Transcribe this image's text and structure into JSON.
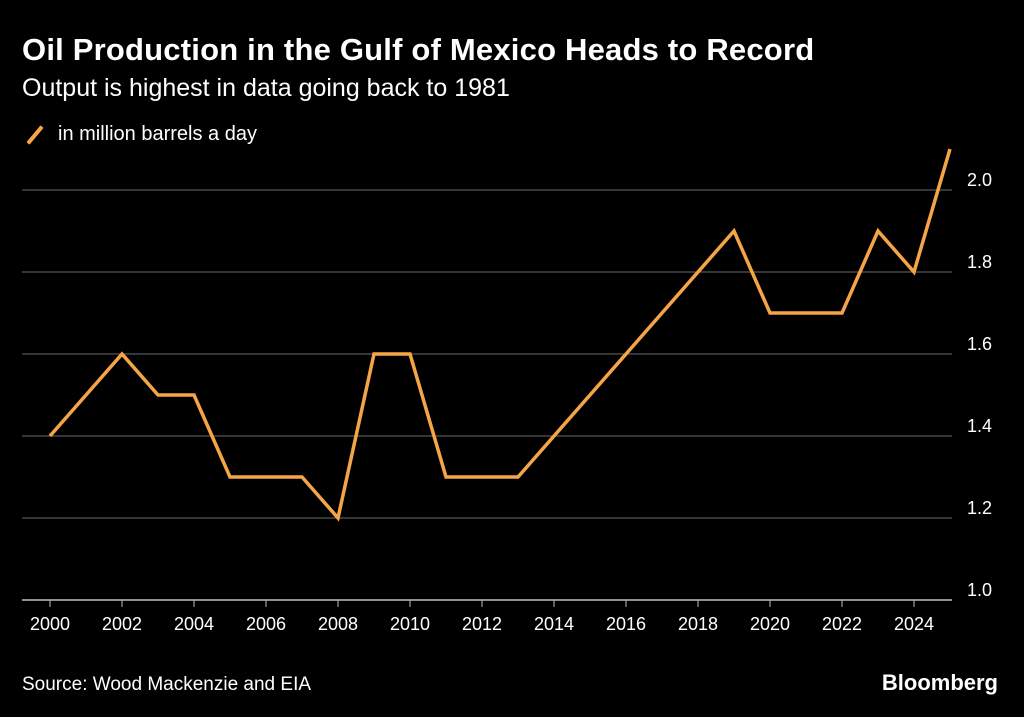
{
  "header": {
    "title": "Oil Production in the Gulf of Mexico Heads to Record",
    "subtitle": "Output is highest in data going back to 1981"
  },
  "legend": {
    "label": "in million barrels a day"
  },
  "footer": {
    "source": "Source: Wood Mackenzie and EIA",
    "brand": "Bloomberg"
  },
  "colors": {
    "background": "#000000",
    "series": "#f5a547",
    "grid": "#6b6b6b",
    "text": "#ffffff"
  },
  "chart_data": {
    "type": "line",
    "title": "Oil Production in the Gulf of Mexico Heads to Record",
    "subtitle": "Output is highest in data going back to 1981",
    "xlabel": "",
    "ylabel": "",
    "y_axis_side": "right",
    "grid": true,
    "legend_placement": "top-left",
    "xlim": [
      2000,
      2025
    ],
    "ylim": [
      1.0,
      2.0
    ],
    "x_ticks": [
      2000,
      2002,
      2004,
      2006,
      2008,
      2010,
      2012,
      2014,
      2016,
      2018,
      2020,
      2022,
      2024
    ],
    "x_tick_labels": [
      "2000",
      "2002",
      "2004",
      "2006",
      "2008",
      "2010",
      "2012",
      "2014",
      "2016",
      "2018",
      "2020",
      "2022",
      "2024"
    ],
    "y_ticks": [
      1.0,
      1.2,
      1.4,
      1.6,
      1.8,
      2.0
    ],
    "y_tick_labels": [
      "1.0",
      "1.2",
      "1.4",
      "1.6",
      "1.8",
      "2.0"
    ],
    "series": [
      {
        "name": "in million barrels a day",
        "color": "#f5a547",
        "x": [
          2000,
          2002,
          2003,
          2004,
          2005,
          2007,
          2008,
          2009,
          2010,
          2011,
          2013,
          2019,
          2020,
          2022,
          2023,
          2024,
          2025
        ],
        "values": [
          1.4,
          1.6,
          1.5,
          1.5,
          1.3,
          1.3,
          1.2,
          1.6,
          1.6,
          1.3,
          1.3,
          1.9,
          1.7,
          1.7,
          1.9,
          1.8,
          2.1
        ]
      }
    ]
  }
}
